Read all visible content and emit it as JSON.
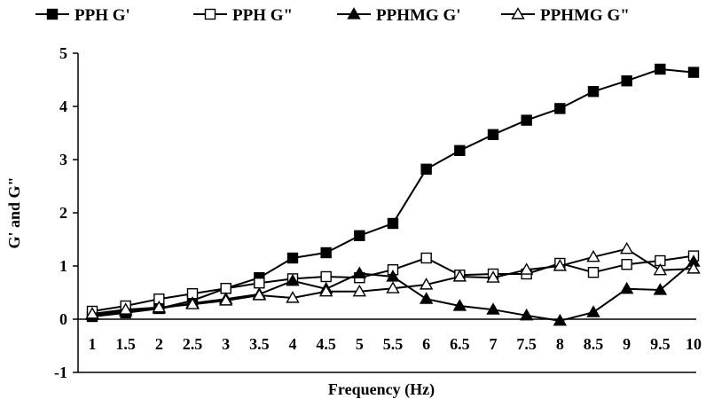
{
  "chart_data": {
    "type": "line",
    "title": "",
    "xlabel": "Frequency (Hz)",
    "ylabel": "G' and G\"",
    "x": [
      1,
      1.5,
      2,
      2.5,
      3,
      3.5,
      4,
      4.5,
      5,
      5.5,
      6,
      6.5,
      7,
      7.5,
      8,
      8.5,
      9,
      9.5,
      10
    ],
    "x_tick_labels": [
      "1",
      "1.5",
      "2",
      "2.5",
      "3",
      "3.5",
      "4",
      "4.5",
      "5",
      "5.5",
      "6",
      "6.5",
      "7",
      "7.5",
      "8",
      "8.5",
      "9",
      "9.5",
      "10"
    ],
    "y_ticks": [
      -1,
      0,
      1,
      2,
      3,
      4,
      5
    ],
    "ylim": [
      -1,
      5
    ],
    "grid": false,
    "legend_position": "top",
    "series": [
      {
        "name": "PPH G'",
        "marker": "square-filled",
        "values": [
          0.05,
          0.12,
          0.2,
          0.35,
          0.58,
          0.78,
          1.15,
          1.25,
          1.57,
          1.8,
          2.82,
          3.17,
          3.47,
          3.74,
          3.96,
          4.28,
          4.48,
          4.7,
          4.64
        ]
      },
      {
        "name": "PPH G\"",
        "marker": "square-open",
        "values": [
          0.15,
          0.25,
          0.38,
          0.48,
          0.58,
          0.68,
          0.76,
          0.8,
          0.78,
          0.93,
          1.15,
          0.83,
          0.85,
          0.85,
          1.05,
          0.88,
          1.03,
          1.1,
          1.19
        ]
      },
      {
        "name": "PPHMG G'",
        "marker": "triangle-filled",
        "values": [
          0.08,
          0.15,
          0.2,
          0.3,
          0.38,
          0.47,
          0.72,
          0.57,
          0.86,
          0.8,
          0.38,
          0.25,
          0.18,
          0.07,
          -0.03,
          0.13,
          0.57,
          0.55,
          1.08
        ]
      },
      {
        "name": "PPHMG G\"",
        "marker": "triangle-open",
        "values": [
          0.1,
          0.18,
          0.22,
          0.28,
          0.35,
          0.45,
          0.4,
          0.52,
          0.52,
          0.58,
          0.65,
          0.8,
          0.78,
          0.93,
          1.0,
          1.17,
          1.32,
          0.92,
          0.95
        ]
      }
    ]
  }
}
